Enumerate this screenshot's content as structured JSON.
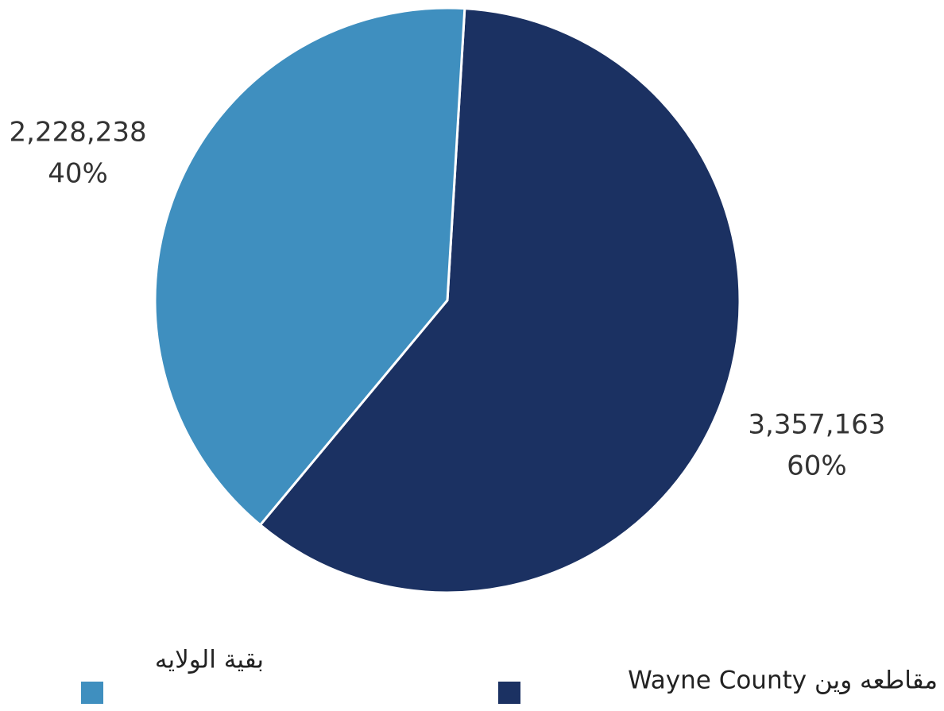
{
  "chart_data": {
    "type": "pie",
    "categories": [
      "مقاطعه وين Wayne County",
      "بقية الولايه"
    ],
    "values": [
      3357163,
      2228238
    ],
    "value_labels": [
      "3,357,163",
      "2,228,238"
    ],
    "percent_labels": [
      "60%",
      "40%"
    ],
    "colors": [
      "#1b3162",
      "#3f8fbf"
    ]
  }
}
